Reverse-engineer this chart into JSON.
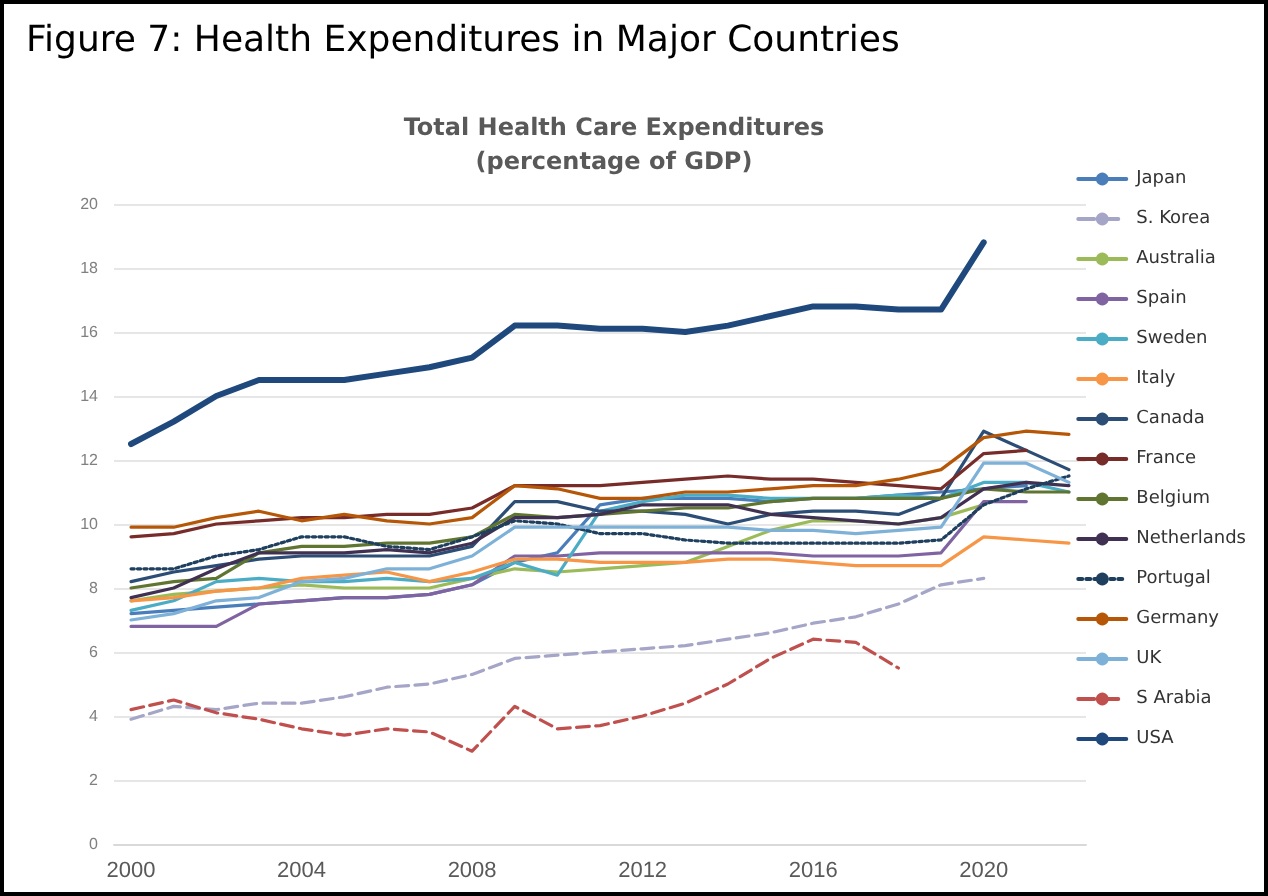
{
  "chart_data": {
    "type": "line",
    "title": "Figure 7: Health Expenditures in Major Countries",
    "subtitle": "Total Health Care Expenditures\n(percentage of GDP)",
    "x": [
      2000,
      2001,
      2002,
      2003,
      2004,
      2005,
      2006,
      2007,
      2008,
      2009,
      2010,
      2011,
      2012,
      2013,
      2014,
      2015,
      2016,
      2017,
      2018,
      2019,
      2020,
      2021,
      2022
    ],
    "xlim": [
      1999.6,
      2022.4
    ],
    "xticks": [
      2000,
      2004,
      2008,
      2012,
      2016,
      2020
    ],
    "ylim": [
      0,
      20
    ],
    "yticks": [
      0,
      2,
      4,
      6,
      8,
      10,
      12,
      14,
      16,
      18,
      20
    ],
    "grid": "y",
    "legend": "right",
    "marker": "none",
    "line_style": "solid",
    "series": [
      {
        "name": "Japan",
        "color": "#4a7ebb",
        "values": [
          7.2,
          7.3,
          7.4,
          7.5,
          7.6,
          7.7,
          7.7,
          7.8,
          8.1,
          8.8,
          9.1,
          10.6,
          10.8,
          10.8,
          10.8,
          10.7,
          10.8,
          10.8,
          10.9,
          11.0,
          11.1,
          11.2,
          null
        ]
      },
      {
        "name": "S. Korea",
        "color": "#a5a5c8",
        "line_style": "dashed",
        "values": [
          3.9,
          4.3,
          4.2,
          4.4,
          4.4,
          4.6,
          4.9,
          5.0,
          5.3,
          5.8,
          5.9,
          6.0,
          6.1,
          6.2,
          6.4,
          6.6,
          6.9,
          7.1,
          7.5,
          8.1,
          8.3,
          null,
          null
        ]
      },
      {
        "name": "Australia",
        "color": "#9bbb59",
        "values": [
          7.6,
          7.8,
          7.9,
          8.0,
          8.1,
          8.0,
          8.0,
          8.0,
          8.3,
          8.6,
          8.5,
          8.6,
          8.7,
          8.8,
          9.3,
          9.8,
          10.1,
          10.1,
          10.0,
          10.2,
          10.6,
          null,
          null
        ]
      },
      {
        "name": "Spain",
        "color": "#8064a2",
        "values": [
          6.8,
          6.8,
          6.8,
          7.5,
          7.6,
          7.7,
          7.7,
          7.8,
          8.1,
          9.0,
          9.0,
          9.1,
          9.1,
          9.1,
          9.1,
          9.1,
          9.0,
          9.0,
          9.0,
          9.1,
          10.7,
          10.7,
          null
        ]
      },
      {
        "name": "Sweden",
        "color": "#4bacc6",
        "values": [
          7.3,
          7.6,
          8.2,
          8.3,
          8.2,
          8.2,
          8.3,
          8.2,
          8.3,
          8.8,
          8.4,
          10.4,
          10.7,
          10.9,
          10.9,
          10.8,
          10.8,
          10.8,
          10.9,
          10.8,
          11.3,
          11.3,
          11.0
        ]
      },
      {
        "name": "Italy",
        "color": "#f79646",
        "values": [
          7.6,
          7.7,
          7.9,
          8.0,
          8.3,
          8.4,
          8.5,
          8.2,
          8.5,
          8.9,
          8.9,
          8.8,
          8.8,
          8.8,
          8.9,
          8.9,
          8.8,
          8.7,
          8.7,
          8.7,
          9.6,
          9.5,
          9.4
        ]
      },
      {
        "name": "Canada",
        "color": "#2c4d75",
        "values": [
          8.2,
          8.5,
          8.7,
          8.9,
          9.0,
          9.0,
          9.0,
          9.0,
          9.3,
          10.7,
          10.7,
          10.4,
          10.4,
          10.3,
          10.0,
          10.3,
          10.4,
          10.4,
          10.3,
          10.8,
          12.9,
          12.3,
          11.7
        ]
      },
      {
        "name": "France",
        "color": "#772c2a",
        "values": [
          9.6,
          9.7,
          10.0,
          10.1,
          10.2,
          10.2,
          10.3,
          10.3,
          10.5,
          11.2,
          11.2,
          11.2,
          11.3,
          11.4,
          11.5,
          11.4,
          11.4,
          11.3,
          11.2,
          11.1,
          12.2,
          12.3,
          null
        ]
      },
      {
        "name": "Belgium",
        "color": "#5f7530",
        "values": [
          8.0,
          8.2,
          8.3,
          9.1,
          9.3,
          9.3,
          9.4,
          9.4,
          9.6,
          10.3,
          10.2,
          10.3,
          10.4,
          10.5,
          10.5,
          10.7,
          10.8,
          10.8,
          10.8,
          10.8,
          11.1,
          11.0,
          11.0
        ]
      },
      {
        "name": "Netherlands",
        "color": "#403152",
        "values": [
          7.7,
          8.0,
          8.6,
          9.1,
          9.1,
          9.1,
          9.2,
          9.1,
          9.4,
          10.2,
          10.2,
          10.3,
          10.6,
          10.6,
          10.6,
          10.3,
          10.2,
          10.1,
          10.0,
          10.2,
          11.1,
          11.3,
          11.2
        ]
      },
      {
        "name": "Portugal",
        "color": "#1f3f5f",
        "line_style": "dotted",
        "values": [
          8.6,
          8.6,
          9.0,
          9.2,
          9.6,
          9.6,
          9.3,
          9.2,
          9.6,
          10.1,
          10.0,
          9.7,
          9.7,
          9.5,
          9.4,
          9.4,
          9.4,
          9.4,
          9.4,
          9.5,
          10.6,
          11.1,
          11.5
        ]
      },
      {
        "name": "Germany",
        "color": "#b65708",
        "values": [
          9.9,
          9.9,
          10.2,
          10.4,
          10.1,
          10.3,
          10.1,
          10.0,
          10.2,
          11.2,
          11.1,
          10.8,
          10.8,
          11.0,
          11.0,
          11.1,
          11.2,
          11.2,
          11.4,
          11.7,
          12.7,
          12.9,
          12.8
        ]
      },
      {
        "name": "UK",
        "color": "#7eb1d8",
        "values": [
          7.0,
          7.2,
          7.6,
          7.7,
          8.2,
          8.3,
          8.6,
          8.6,
          9.0,
          9.9,
          9.9,
          9.9,
          9.9,
          9.9,
          9.9,
          9.8,
          9.8,
          9.7,
          9.8,
          9.9,
          11.9,
          11.9,
          11.3
        ]
      },
      {
        "name": "S Arabia",
        "color": "#c0504d",
        "line_style": "dashed",
        "values": [
          4.2,
          4.5,
          4.1,
          3.9,
          3.6,
          3.4,
          3.6,
          3.5,
          2.9,
          4.3,
          3.6,
          3.7,
          4.0,
          4.4,
          5.0,
          5.8,
          6.4,
          6.3,
          5.5,
          null,
          null,
          null,
          null
        ]
      },
      {
        "name": "USA",
        "color": "#1f497d",
        "values": [
          12.5,
          13.2,
          14.0,
          14.5,
          14.5,
          14.5,
          14.7,
          14.9,
          15.2,
          16.2,
          16.2,
          16.1,
          16.1,
          16.0,
          16.2,
          16.5,
          16.8,
          16.8,
          16.7,
          16.7,
          18.8,
          null,
          null
        ]
      }
    ]
  }
}
